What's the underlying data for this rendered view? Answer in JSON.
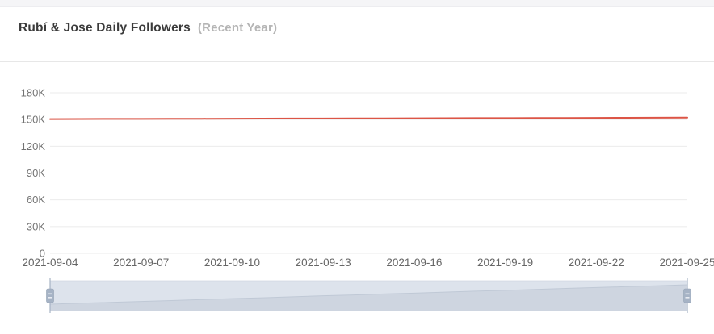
{
  "header": {
    "title": "Rubí & Jose Daily Followers",
    "subtitle": "(Recent Year)"
  },
  "colors": {
    "series_line": "#dc5546",
    "grid_line": "#ebebeb",
    "x_axis_label": "#666666",
    "y_axis_label": "#737373",
    "title_text": "#3a3a3a",
    "subtitle_text": "#b5b5b5",
    "slider_track": "#e9edf3",
    "slider_border": "#dce1e8",
    "slider_shadow_fill": "#d7dce5",
    "slider_shadow_line": "#c6cdd8",
    "slider_filler": "rgba(167,183,204,0.18)",
    "slider_handle": "#a6b3c5",
    "slider_handle_border": "#93a2b5",
    "slider_handle_stripe": "#e8ecf2"
  },
  "chart_data": {
    "type": "line",
    "title": "Rubí & Jose Daily Followers",
    "subtitle": "(Recent Year)",
    "x": [
      "2021-09-04",
      "2021-09-05",
      "2021-09-06",
      "2021-09-07",
      "2021-09-08",
      "2021-09-09",
      "2021-09-10",
      "2021-09-11",
      "2021-09-12",
      "2021-09-13",
      "2021-09-14",
      "2021-09-15",
      "2021-09-16",
      "2021-09-17",
      "2021-09-18",
      "2021-09-19",
      "2021-09-20",
      "2021-09-21",
      "2021-09-22",
      "2021-09-23",
      "2021-09-24",
      "2021-09-25"
    ],
    "series": [
      {
        "name": "Daily Followers",
        "color": "#dc5546",
        "values": [
          150500,
          150580,
          150650,
          150730,
          150800,
          150880,
          150960,
          151030,
          151110,
          151190,
          151260,
          151340,
          151410,
          151490,
          151570,
          151640,
          151720,
          151800,
          151870,
          151950,
          152020,
          152100
        ]
      }
    ],
    "ylim": [
      0,
      180000
    ],
    "y_ticks": [
      {
        "value": 0,
        "label": "0"
      },
      {
        "value": 30000,
        "label": "30K"
      },
      {
        "value": 60000,
        "label": "60K"
      },
      {
        "value": 90000,
        "label": "90K"
      },
      {
        "value": 120000,
        "label": "120K"
      },
      {
        "value": 150000,
        "label": "150K"
      },
      {
        "value": 180000,
        "label": "180K"
      }
    ],
    "x_tick_labels": [
      "2021-09-04",
      "2021-09-07",
      "2021-09-10",
      "2021-09-13",
      "2021-09-16",
      "2021-09-19",
      "2021-09-22",
      "2021-09-25"
    ],
    "x_tick_interval": 3,
    "grid": true,
    "legend": false,
    "datazoom": {
      "start_date": "2021-09-04",
      "end_date": "2021-09-25",
      "start_percent": 0,
      "end_percent": 100
    }
  }
}
